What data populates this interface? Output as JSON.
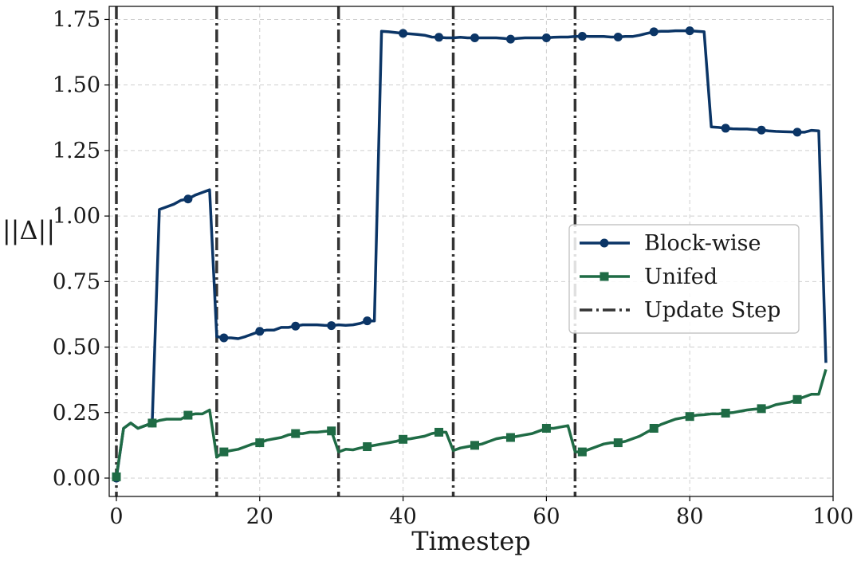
{
  "chart_data": {
    "type": "line",
    "title": "",
    "xlabel": "Timestep",
    "ylabel": "||Δ||",
    "xlim": [
      -1,
      100
    ],
    "ylim": [
      -0.07,
      1.8
    ],
    "xticks": [
      0,
      20,
      40,
      60,
      80,
      100
    ],
    "xtick_labels": [
      "0",
      "20",
      "40",
      "60",
      "80",
      "100"
    ],
    "yticks": [
      0,
      0.25,
      0.5,
      0.75,
      1.0,
      1.25,
      1.5,
      1.75
    ],
    "ytick_labels": [
      "0.00",
      "0.25",
      "0.50",
      "0.75",
      "1.00",
      "1.25",
      "1.50",
      "1.75"
    ],
    "grid": true,
    "legend_position": "center-right",
    "update_steps": [
      0,
      14,
      31,
      47,
      64
    ],
    "update_label": "Update Step",
    "update_color": "#333333",
    "series": [
      {
        "name": "Block-wise",
        "color": "#0b3566",
        "marker": "circle",
        "marker_every": 5,
        "points": [
          [
            0,
            0.0
          ],
          [
            1,
            0.19
          ],
          [
            2,
            0.21
          ],
          [
            3,
            0.19
          ],
          [
            4,
            0.2
          ],
          [
            5,
            0.21
          ],
          [
            6,
            1.025
          ],
          [
            7,
            1.035
          ],
          [
            8,
            1.045
          ],
          [
            9,
            1.06
          ],
          [
            10,
            1.065
          ],
          [
            11,
            1.08
          ],
          [
            12,
            1.09
          ],
          [
            13,
            1.1
          ],
          [
            14,
            0.54
          ],
          [
            15,
            0.535
          ],
          [
            16,
            0.535
          ],
          [
            17,
            0.532
          ],
          [
            18,
            0.54
          ],
          [
            19,
            0.55
          ],
          [
            20,
            0.56
          ],
          [
            21,
            0.565
          ],
          [
            22,
            0.565
          ],
          [
            23,
            0.575
          ],
          [
            24,
            0.575
          ],
          [
            25,
            0.58
          ],
          [
            26,
            0.585
          ],
          [
            27,
            0.585
          ],
          [
            28,
            0.585
          ],
          [
            29,
            0.583
          ],
          [
            30,
            0.582
          ],
          [
            31,
            0.585
          ],
          [
            32,
            0.583
          ],
          [
            33,
            0.585
          ],
          [
            34,
            0.59
          ],
          [
            35,
            0.6
          ],
          [
            36,
            0.6
          ],
          [
            37,
            1.705
          ],
          [
            38,
            1.703
          ],
          [
            39,
            1.7
          ],
          [
            40,
            1.697
          ],
          [
            41,
            1.695
          ],
          [
            42,
            1.693
          ],
          [
            43,
            1.69
          ],
          [
            44,
            1.683
          ],
          [
            45,
            1.682
          ],
          [
            46,
            1.68
          ],
          [
            47,
            1.68
          ],
          [
            48,
            1.682
          ],
          [
            49,
            1.68
          ],
          [
            50,
            1.68
          ],
          [
            51,
            1.68
          ],
          [
            52,
            1.68
          ],
          [
            53,
            1.68
          ],
          [
            54,
            1.678
          ],
          [
            55,
            1.675
          ],
          [
            56,
            1.678
          ],
          [
            57,
            1.68
          ],
          [
            58,
            1.68
          ],
          [
            59,
            1.68
          ],
          [
            60,
            1.68
          ],
          [
            61,
            1.682
          ],
          [
            62,
            1.683
          ],
          [
            63,
            1.683
          ],
          [
            64,
            1.685
          ],
          [
            65,
            1.686
          ],
          [
            66,
            1.685
          ],
          [
            67,
            1.685
          ],
          [
            68,
            1.685
          ],
          [
            69,
            1.683
          ],
          [
            70,
            1.683
          ],
          [
            71,
            1.685
          ],
          [
            72,
            1.685
          ],
          [
            73,
            1.69
          ],
          [
            74,
            1.697
          ],
          [
            75,
            1.703
          ],
          [
            76,
            1.705
          ],
          [
            77,
            1.705
          ],
          [
            78,
            1.707
          ],
          [
            79,
            1.707
          ],
          [
            80,
            1.707
          ],
          [
            81,
            1.705
          ],
          [
            82,
            1.703
          ],
          [
            83,
            1.34
          ],
          [
            84,
            1.338
          ],
          [
            85,
            1.335
          ],
          [
            86,
            1.333
          ],
          [
            87,
            1.332
          ],
          [
            88,
            1.332
          ],
          [
            89,
            1.33
          ],
          [
            90,
            1.328
          ],
          [
            91,
            1.325
          ],
          [
            92,
            1.323
          ],
          [
            93,
            1.322
          ],
          [
            94,
            1.321
          ],
          [
            95,
            1.32
          ],
          [
            96,
            1.32
          ],
          [
            97,
            1.327
          ],
          [
            98,
            1.325
          ],
          [
            99,
            0.44
          ]
        ]
      },
      {
        "name": "Unifed",
        "color": "#1f6b45",
        "marker": "square",
        "marker_every": 5,
        "points": [
          [
            0,
            0.005
          ],
          [
            1,
            0.19
          ],
          [
            2,
            0.21
          ],
          [
            3,
            0.19
          ],
          [
            4,
            0.2
          ],
          [
            5,
            0.21
          ],
          [
            6,
            0.22
          ],
          [
            7,
            0.225
          ],
          [
            8,
            0.225
          ],
          [
            9,
            0.225
          ],
          [
            10,
            0.24
          ],
          [
            11,
            0.245
          ],
          [
            12,
            0.245
          ],
          [
            13,
            0.26
          ],
          [
            14,
            0.08
          ],
          [
            15,
            0.1
          ],
          [
            16,
            0.105
          ],
          [
            17,
            0.11
          ],
          [
            18,
            0.12
          ],
          [
            19,
            0.13
          ],
          [
            20,
            0.135
          ],
          [
            21,
            0.145
          ],
          [
            22,
            0.15
          ],
          [
            23,
            0.155
          ],
          [
            24,
            0.165
          ],
          [
            25,
            0.17
          ],
          [
            26,
            0.17
          ],
          [
            27,
            0.175
          ],
          [
            28,
            0.175
          ],
          [
            29,
            0.178
          ],
          [
            30,
            0.18
          ],
          [
            31,
            0.1
          ],
          [
            32,
            0.11
          ],
          [
            33,
            0.108
          ],
          [
            34,
            0.115
          ],
          [
            35,
            0.12
          ],
          [
            36,
            0.125
          ],
          [
            37,
            0.13
          ],
          [
            38,
            0.135
          ],
          [
            39,
            0.14
          ],
          [
            40,
            0.148
          ],
          [
            41,
            0.15
          ],
          [
            42,
            0.155
          ],
          [
            43,
            0.16
          ],
          [
            44,
            0.17
          ],
          [
            45,
            0.175
          ],
          [
            46,
            0.175
          ],
          [
            47,
            0.105
          ],
          [
            48,
            0.115
          ],
          [
            49,
            0.12
          ],
          [
            50,
            0.125
          ],
          [
            51,
            0.13
          ],
          [
            52,
            0.14
          ],
          [
            53,
            0.15
          ],
          [
            54,
            0.155
          ],
          [
            55,
            0.155
          ],
          [
            56,
            0.16
          ],
          [
            57,
            0.165
          ],
          [
            58,
            0.17
          ],
          [
            59,
            0.18
          ],
          [
            60,
            0.19
          ],
          [
            61,
            0.19
          ],
          [
            62,
            0.195
          ],
          [
            63,
            0.2
          ],
          [
            64,
            0.1
          ],
          [
            65,
            0.1
          ],
          [
            66,
            0.11
          ],
          [
            67,
            0.12
          ],
          [
            68,
            0.13
          ],
          [
            69,
            0.135
          ],
          [
            70,
            0.135
          ],
          [
            71,
            0.14
          ],
          [
            72,
            0.15
          ],
          [
            73,
            0.16
          ],
          [
            74,
            0.175
          ],
          [
            75,
            0.19
          ],
          [
            76,
            0.205
          ],
          [
            77,
            0.215
          ],
          [
            78,
            0.225
          ],
          [
            79,
            0.23
          ],
          [
            80,
            0.235
          ],
          [
            81,
            0.24
          ],
          [
            82,
            0.242
          ],
          [
            83,
            0.245
          ],
          [
            84,
            0.245
          ],
          [
            85,
            0.248
          ],
          [
            86,
            0.25
          ],
          [
            87,
            0.255
          ],
          [
            88,
            0.26
          ],
          [
            89,
            0.263
          ],
          [
            90,
            0.265
          ],
          [
            91,
            0.27
          ],
          [
            92,
            0.28
          ],
          [
            93,
            0.285
          ],
          [
            94,
            0.29
          ],
          [
            95,
            0.3
          ],
          [
            96,
            0.31
          ],
          [
            97,
            0.32
          ],
          [
            98,
            0.32
          ],
          [
            99,
            0.415
          ]
        ]
      }
    ]
  }
}
